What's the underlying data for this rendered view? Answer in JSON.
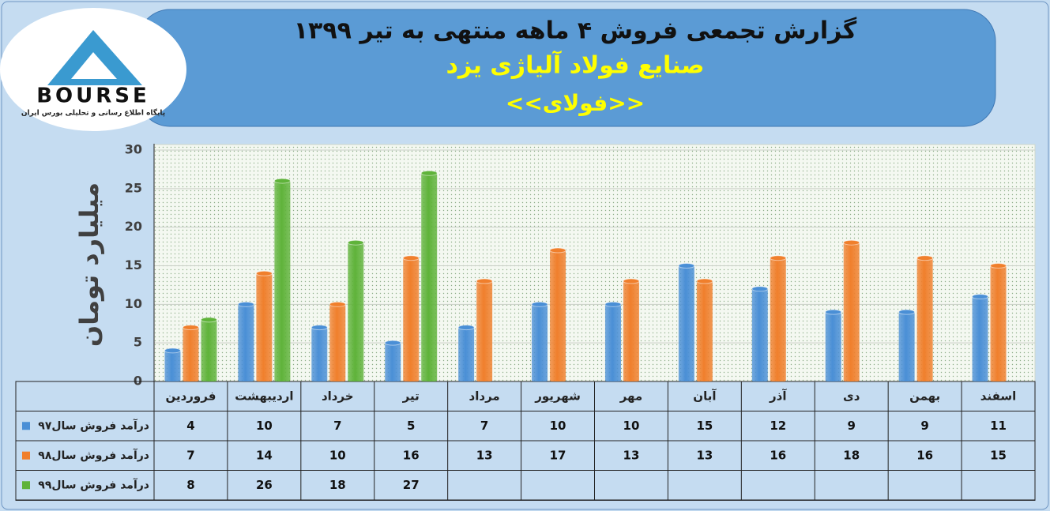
{
  "logo": {
    "name": "BOURSE",
    "tagline": "پایگاه اطلاع رسانی و تحلیلی بورس ایران"
  },
  "chart_data": {
    "type": "bar",
    "title": "گزارش تجمعی فروش  ۴ ماهه منتهی به تیر ۱۳۹۹",
    "subtitle": "صنایع فولاد آلیاژی یزد",
    "symbol": "<<فولای>>",
    "y_label": "میلیارد تومان",
    "categories": [
      "فروردین",
      "اردیبهشت",
      "خرداد",
      "تیر",
      "مرداد",
      "شهریور",
      "مهر",
      "آبان",
      "آذر",
      "دی",
      "بهمن",
      "اسفند"
    ],
    "series": [
      {
        "name": "درآمد فروش سال۹۷",
        "color": "#4a8fd6",
        "values": [
          4,
          10,
          7,
          5,
          7,
          10,
          10,
          15,
          12,
          9,
          9,
          11
        ]
      },
      {
        "name": "درآمد فروش سال۹۸",
        "color": "#f07f2c",
        "values": [
          7,
          14,
          10,
          16,
          13,
          17,
          13,
          13,
          16,
          18,
          16,
          15
        ]
      },
      {
        "name": "درآمد فروش سال۹۹",
        "color": "#5fb33a",
        "values": [
          8,
          26,
          18,
          27,
          null,
          null,
          null,
          null,
          null,
          null,
          null,
          null
        ]
      }
    ],
    "ylim": [
      0,
      30
    ],
    "yticks": [
      0,
      5,
      10,
      15,
      20,
      25,
      30
    ],
    "grid": true
  }
}
